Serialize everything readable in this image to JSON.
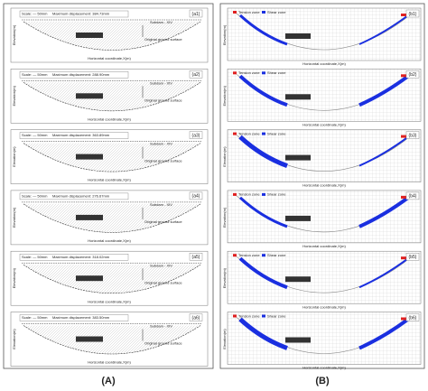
{
  "panel_a": {
    "label": "(A)",
    "scale": "Scale: — 50mm",
    "dam": "Subdam - XIV",
    "surface": "Original ground surface",
    "y_label": "Elevation(m)",
    "x_label": "Horizontal coordinate,X(m)",
    "subplots": [
      {
        "label": "(a1)",
        "max_displacement": "Maximum displacement: 384.73mm"
      },
      {
        "label": "(a2)",
        "max_displacement": "Maximum displacement: 288.90mm"
      },
      {
        "label": "(a3)",
        "max_displacement": "Maximum displacement: 363.89mm"
      },
      {
        "label": "(a4)",
        "max_displacement": "Maximum displacement: 276.67mm"
      },
      {
        "label": "(a5)",
        "max_displacement": "Maximum displacement: 318.02mm"
      },
      {
        "label": "(a6)",
        "max_displacement": "Maximum displacement: 383.50mm"
      }
    ]
  },
  "panel_b": {
    "label": "(B)",
    "tension": "Tension zone",
    "shear": "Shear zone",
    "y_label": "Elevation(m)",
    "x_label": "Horizontal coordinate,X(m)",
    "subplots": [
      {
        "label": "(b1)"
      },
      {
        "label": "(b2)"
      },
      {
        "label": "(b3)"
      },
      {
        "label": "(b4)"
      },
      {
        "label": "(b5)"
      },
      {
        "label": "(b6)"
      }
    ]
  }
}
